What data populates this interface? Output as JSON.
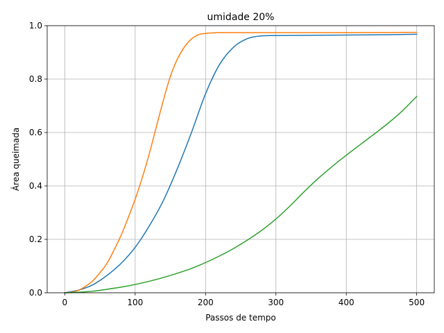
{
  "chart_data": {
    "type": "line",
    "title": "umidade 20%",
    "xlabel": "Passos de tempo",
    "ylabel": "Área queimada",
    "xlim": [
      -25,
      525
    ],
    "ylim": [
      0.0,
      1.0
    ],
    "xticks": [
      0,
      100,
      200,
      300,
      400,
      500
    ],
    "xtick_labels": [
      "0",
      "100",
      "200",
      "300",
      "400",
      "500"
    ],
    "yticks": [
      0.0,
      0.2,
      0.4,
      0.6,
      0.8,
      1.0
    ],
    "ytick_labels": [
      "0.0",
      "0.2",
      "0.4",
      "0.6",
      "0.8",
      "1.0"
    ],
    "grid": true,
    "series": [
      {
        "color": "#1f77b4",
        "x": [
          0,
          20,
          40,
          60,
          80,
          100,
          120,
          140,
          160,
          180,
          200,
          220,
          240,
          260,
          280,
          300,
          350,
          400,
          450,
          500
        ],
        "y": [
          0.0,
          0.01,
          0.03,
          0.065,
          0.11,
          0.17,
          0.25,
          0.345,
          0.465,
          0.6,
          0.745,
          0.855,
          0.92,
          0.952,
          0.962,
          0.963,
          0.964,
          0.965,
          0.966,
          0.968
        ]
      },
      {
        "color": "#ff7f0e",
        "x": [
          0,
          10,
          20,
          30,
          40,
          50,
          60,
          70,
          80,
          90,
          100,
          110,
          120,
          130,
          140,
          150,
          160,
          170,
          180,
          190,
          200,
          210,
          220,
          240,
          300,
          400,
          500
        ],
        "y": [
          0.0,
          0.002,
          0.01,
          0.025,
          0.045,
          0.075,
          0.11,
          0.16,
          0.215,
          0.28,
          0.35,
          0.43,
          0.52,
          0.62,
          0.72,
          0.81,
          0.875,
          0.92,
          0.95,
          0.966,
          0.971,
          0.973,
          0.974,
          0.974,
          0.974,
          0.974,
          0.975
        ]
      },
      {
        "color": "#2ca02c",
        "x": [
          0,
          20,
          40,
          60,
          80,
          100,
          120,
          140,
          160,
          180,
          200,
          220,
          240,
          260,
          280,
          300,
          320,
          340,
          360,
          380,
          400,
          420,
          440,
          460,
          480,
          500
        ],
        "y": [
          0.0,
          0.002,
          0.006,
          0.013,
          0.021,
          0.031,
          0.043,
          0.057,
          0.073,
          0.091,
          0.113,
          0.138,
          0.166,
          0.198,
          0.234,
          0.276,
          0.325,
          0.378,
          0.428,
          0.473,
          0.515,
          0.555,
          0.595,
          0.636,
          0.682,
          0.735
        ]
      }
    ]
  }
}
